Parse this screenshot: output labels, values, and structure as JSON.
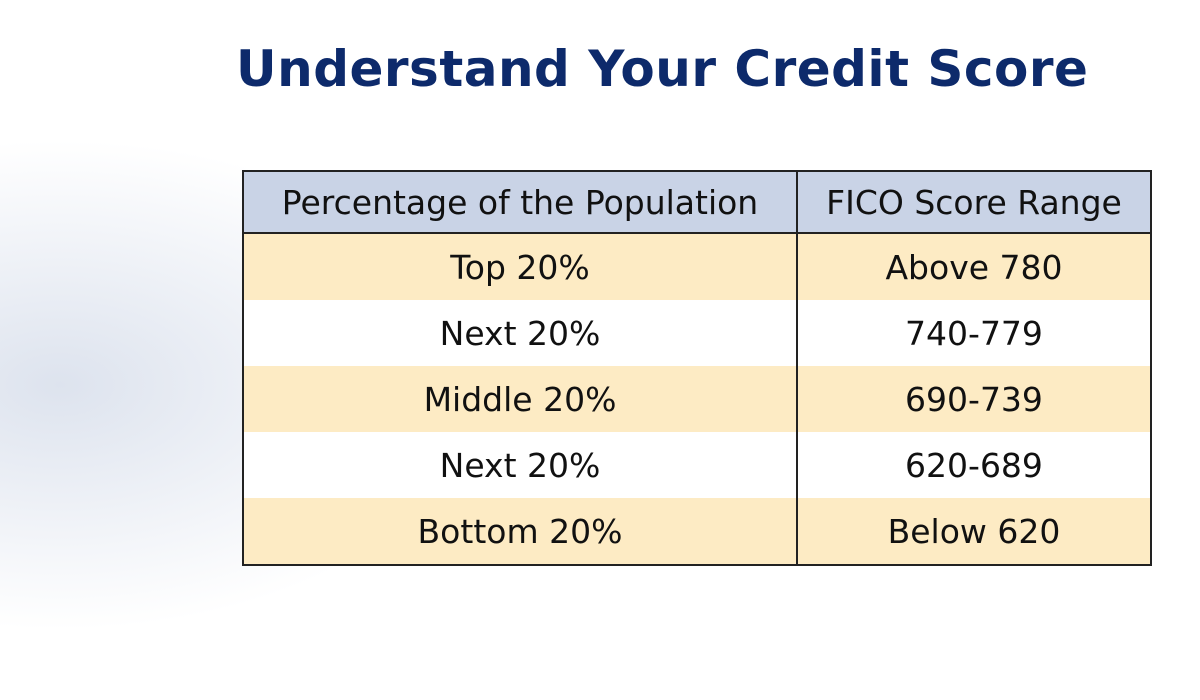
{
  "header": {
    "title": "Understand Your Credit Score"
  },
  "table": {
    "columns": [
      "Percentage of the Population",
      "FICO Score Range"
    ],
    "rows": [
      [
        "Top 20%",
        "Above 780"
      ],
      [
        "Next 20%",
        "740-779"
      ],
      [
        "Middle 20%",
        "690-739"
      ],
      [
        "Next 20%",
        "620-689"
      ],
      [
        "Bottom 20%",
        "Below 620"
      ]
    ]
  }
}
